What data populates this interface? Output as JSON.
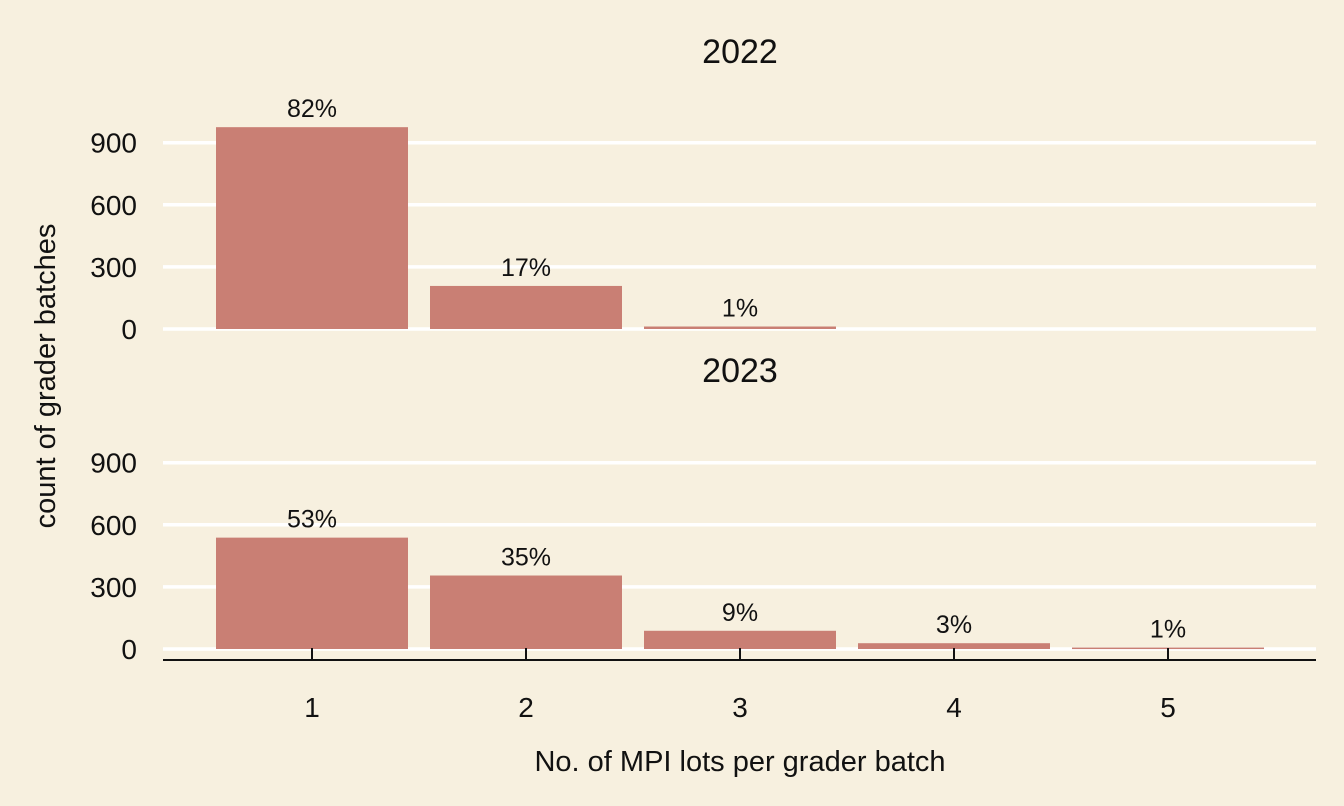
{
  "chart_data": {
    "type": "bar",
    "xlabel": "No. of MPI lots per grader batch",
    "ylabel": "count of grader batches",
    "categories": [
      "1",
      "2",
      "3",
      "4",
      "5"
    ],
    "yticks": [
      0,
      300,
      600,
      900
    ],
    "ylim": [
      0,
      1050
    ],
    "grid": "horizontal",
    "bar_color": "#c97f74",
    "panels": [
      {
        "title": "2022",
        "values": [
          975,
          208,
          12,
          0,
          0
        ],
        "labels": [
          "82%",
          "17%",
          "1%",
          "",
          ""
        ]
      },
      {
        "title": "2023",
        "values": [
          538,
          355,
          88,
          28,
          7
        ],
        "labels": [
          "53%",
          "35%",
          "9%",
          "3%",
          "1%"
        ]
      }
    ]
  }
}
